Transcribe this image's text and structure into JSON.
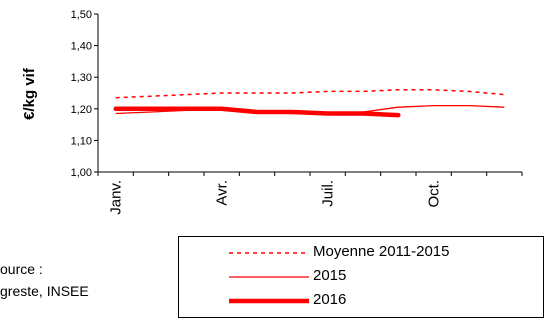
{
  "chart_data": {
    "type": "line",
    "ylabel": "€/kg vif",
    "ylim": [
      1.0,
      1.5
    ],
    "yticks": [
      "1,00",
      "1,10",
      "1,20",
      "1,30",
      "1,40",
      "1,50"
    ],
    "ytick_values": [
      1.0,
      1.1,
      1.2,
      1.3,
      1.4,
      1.5
    ],
    "x": [
      1,
      2,
      3,
      4,
      5,
      6,
      7,
      8,
      9,
      10,
      11,
      12
    ],
    "xticks": [
      {
        "label": "Janv.",
        "x": 1
      },
      {
        "label": "Avr.",
        "x": 4
      },
      {
        "label": "Juil.",
        "x": 7
      },
      {
        "label": "Oct.",
        "x": 10
      }
    ],
    "series": [
      {
        "name": "Moyenne 2011-2015",
        "color": "#ff0000",
        "style": "dashed",
        "values": [
          1.235,
          1.24,
          1.245,
          1.25,
          1.25,
          1.25,
          1.255,
          1.255,
          1.26,
          1.26,
          1.255,
          1.245
        ]
      },
      {
        "name": "2015",
        "color": "#ff0000",
        "style": "thin",
        "values": [
          1.185,
          1.19,
          1.195,
          1.195,
          1.19,
          1.19,
          1.185,
          1.19,
          1.205,
          1.21,
          1.21,
          1.205
        ]
      },
      {
        "name": "2016",
        "color": "#ff0000",
        "style": "thick",
        "values": [
          1.2,
          1.2,
          1.2,
          1.2,
          1.19,
          1.19,
          1.185,
          1.185,
          1.18,
          null,
          null,
          null
        ]
      }
    ],
    "legend": "bottom-right",
    "grid": false
  },
  "source": {
    "line1": "ource :",
    "line2": "greste, INSEE"
  }
}
